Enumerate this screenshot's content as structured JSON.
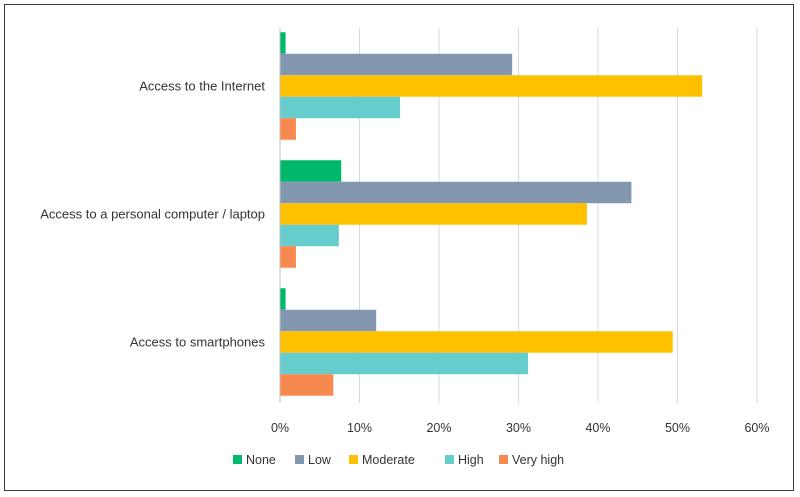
{
  "chart_data": {
    "type": "bar",
    "orientation": "horizontal",
    "categories": [
      "Access to the Internet",
      "Access to a personal computer / laptop",
      "Access to smartphones"
    ],
    "series": [
      {
        "name": "None",
        "color": "#00b86b",
        "values": [
          0.7,
          7.7,
          0.7
        ]
      },
      {
        "name": "Low",
        "color": "#8497b0",
        "values": [
          29.2,
          44.2,
          12.1
        ]
      },
      {
        "name": "Moderate",
        "color": "#ffc000",
        "values": [
          53.1,
          38.6,
          49.4
        ]
      },
      {
        "name": "High",
        "color": "#66cccc",
        "values": [
          15.1,
          7.4,
          31.2
        ]
      },
      {
        "name": "Very high",
        "color": "#f7894f",
        "values": [
          2.0,
          2.0,
          6.7
        ]
      }
    ],
    "xlim": [
      0,
      60
    ],
    "xticks": [
      "0%",
      "10%",
      "20%",
      "30%",
      "40%",
      "50%",
      "60%"
    ],
    "grid": true,
    "legend_position": "bottom"
  }
}
